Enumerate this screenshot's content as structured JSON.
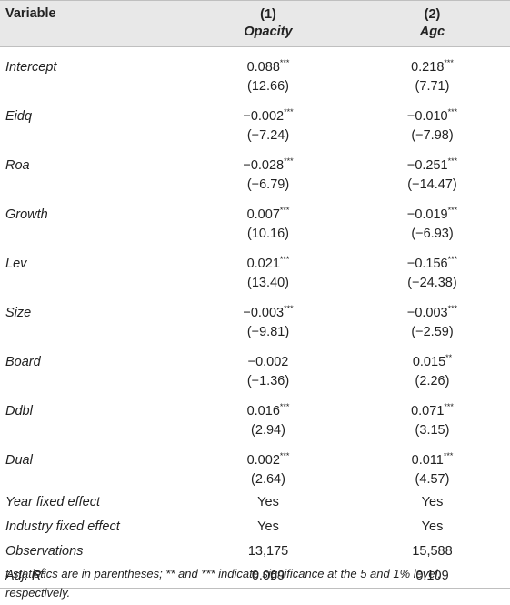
{
  "header": {
    "variable": "Variable",
    "models": [
      {
        "number": "(1)",
        "name": "Opacity"
      },
      {
        "number": "(2)",
        "name": "Agc"
      }
    ]
  },
  "rows": [
    {
      "name": "Intercept",
      "c1": "0.088",
      "c1_sig": "***",
      "t1": "(12.66)",
      "c2": "0.218",
      "c2_sig": "***",
      "t2": "(7.71)"
    },
    {
      "name": "Eidq",
      "c1": "−0.002",
      "c1_sig": "***",
      "t1": "(−7.24)",
      "c2": "−0.010",
      "c2_sig": "***",
      "t2": "(−7.98)"
    },
    {
      "name": "Roa",
      "c1": "−0.028",
      "c1_sig": "***",
      "t1": "(−6.79)",
      "c2": "−0.251",
      "c2_sig": "***",
      "t2": "(−14.47)"
    },
    {
      "name": "Growth",
      "c1": "0.007",
      "c1_sig": "***",
      "t1": "(10.16)",
      "c2": "−0.019",
      "c2_sig": "***",
      "t2": "(−6.93)"
    },
    {
      "name": "Lev",
      "c1": "0.021",
      "c1_sig": "***",
      "t1": "(13.40)",
      "c2": "−0.156",
      "c2_sig": "***",
      "t2": "(−24.38)"
    },
    {
      "name": "Size",
      "c1": "−0.003",
      "c1_sig": "***",
      "t1": "(−9.81)",
      "c2": "−0.003",
      "c2_sig": "***",
      "t2": "(−2.59)"
    },
    {
      "name": "Board",
      "c1": "−0.002",
      "c1_sig": "",
      "t1": "(−1.36)",
      "c2": "0.015",
      "c2_sig": "**",
      "t2": "(2.26)"
    },
    {
      "name": "Ddbl",
      "c1": "0.016",
      "c1_sig": "***",
      "t1": "(2.94)",
      "c2": "0.071",
      "c2_sig": "***",
      "t2": "(3.15)"
    },
    {
      "name": "Dual",
      "c1": "0.002",
      "c1_sig": "***",
      "t1": "(2.64)",
      "c2": "0.011",
      "c2_sig": "***",
      "t2": "(4.57)"
    }
  ],
  "summary": [
    {
      "name": "Year fixed effect",
      "c1": "Yes",
      "c2": "Yes"
    },
    {
      "name": "Industry fixed effect",
      "c1": "Yes",
      "c2": "Yes"
    },
    {
      "name": "Observations",
      "c1": "13,175",
      "c2": "15,588"
    }
  ],
  "adj_r2": {
    "name": "Adj. R",
    "sup": "2",
    "c1": "0.069",
    "c2": "0.109"
  },
  "note": "t-statistics are in parentheses; ** and *** indicate significance at the 5 and 1% level, respectively."
}
